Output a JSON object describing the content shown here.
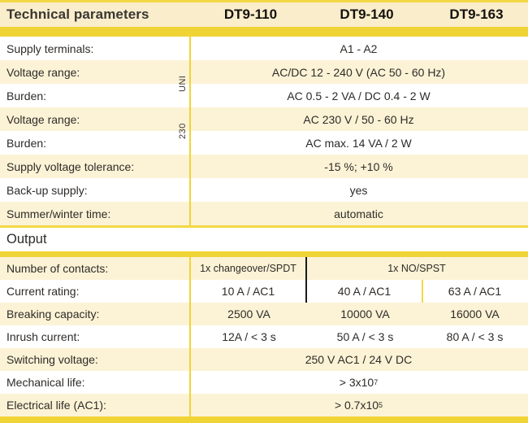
{
  "colors": {
    "accent_yellow": "#F0D435",
    "thin_line_yellow": "#F2D943",
    "header_cream": "#FAEDCB",
    "row_cream": "#FCF3D6",
    "row_white": "#FFFFFF",
    "text_dark": "#2E2B28",
    "black_divider": "#1A1A1A"
  },
  "header": {
    "title": "Technical parameters",
    "columns": [
      "DT9-110",
      "DT9-140",
      "DT9-163"
    ]
  },
  "group_labels": {
    "uni": "UNI",
    "v230": "230"
  },
  "supply_rows": [
    {
      "label": "Supply terminals:",
      "value": "A1 - A2"
    },
    {
      "label": "Voltage range:",
      "value": "AC/DC 12 - 240 V (AC 50 - 60 Hz)"
    },
    {
      "label": "Burden:",
      "value": "AC 0.5 - 2 VA / DC 0.4 - 2 W"
    },
    {
      "label": "Voltage range:",
      "value": "AC 230 V / 50 - 60 Hz"
    },
    {
      "label": "Burden:",
      "value": "AC max. 14 VA / 2 W"
    },
    {
      "label": "Supply voltage tolerance:",
      "value": "-15 %; +10 %"
    },
    {
      "label": "Back-up supply:",
      "value": "yes"
    },
    {
      "label": "Summer/winter time:",
      "value": "automatic"
    }
  ],
  "output": {
    "title": "Output",
    "contacts": {
      "label": "Number of contacts:",
      "col1": "1x changeover/SPDT",
      "col23": "1x NO/SPST"
    },
    "current": {
      "label": "Current rating:",
      "col1": "10 A / AC1",
      "col2": "40 A / AC1",
      "col3": "63 A / AC1"
    },
    "breaking": {
      "label": "Breaking capacity:",
      "col1": "2500 VA",
      "col2": "10000 VA",
      "col3": "16000 VA"
    },
    "inrush": {
      "label": "Inrush current:",
      "col1": "12A / < 3 s",
      "col2": "50 A / < 3 s",
      "col3": "80 A / < 3 s"
    },
    "switching": {
      "label": "Switching voltage:",
      "value": "250 V AC1 / 24 V DC"
    },
    "mechanical": {
      "label": "Mechanical life:",
      "base": "> 3x10",
      "sup": "7"
    },
    "electrical": {
      "label": "Electrical life (AC1):",
      "base": "> 0.7x10",
      "sup": "5"
    }
  }
}
